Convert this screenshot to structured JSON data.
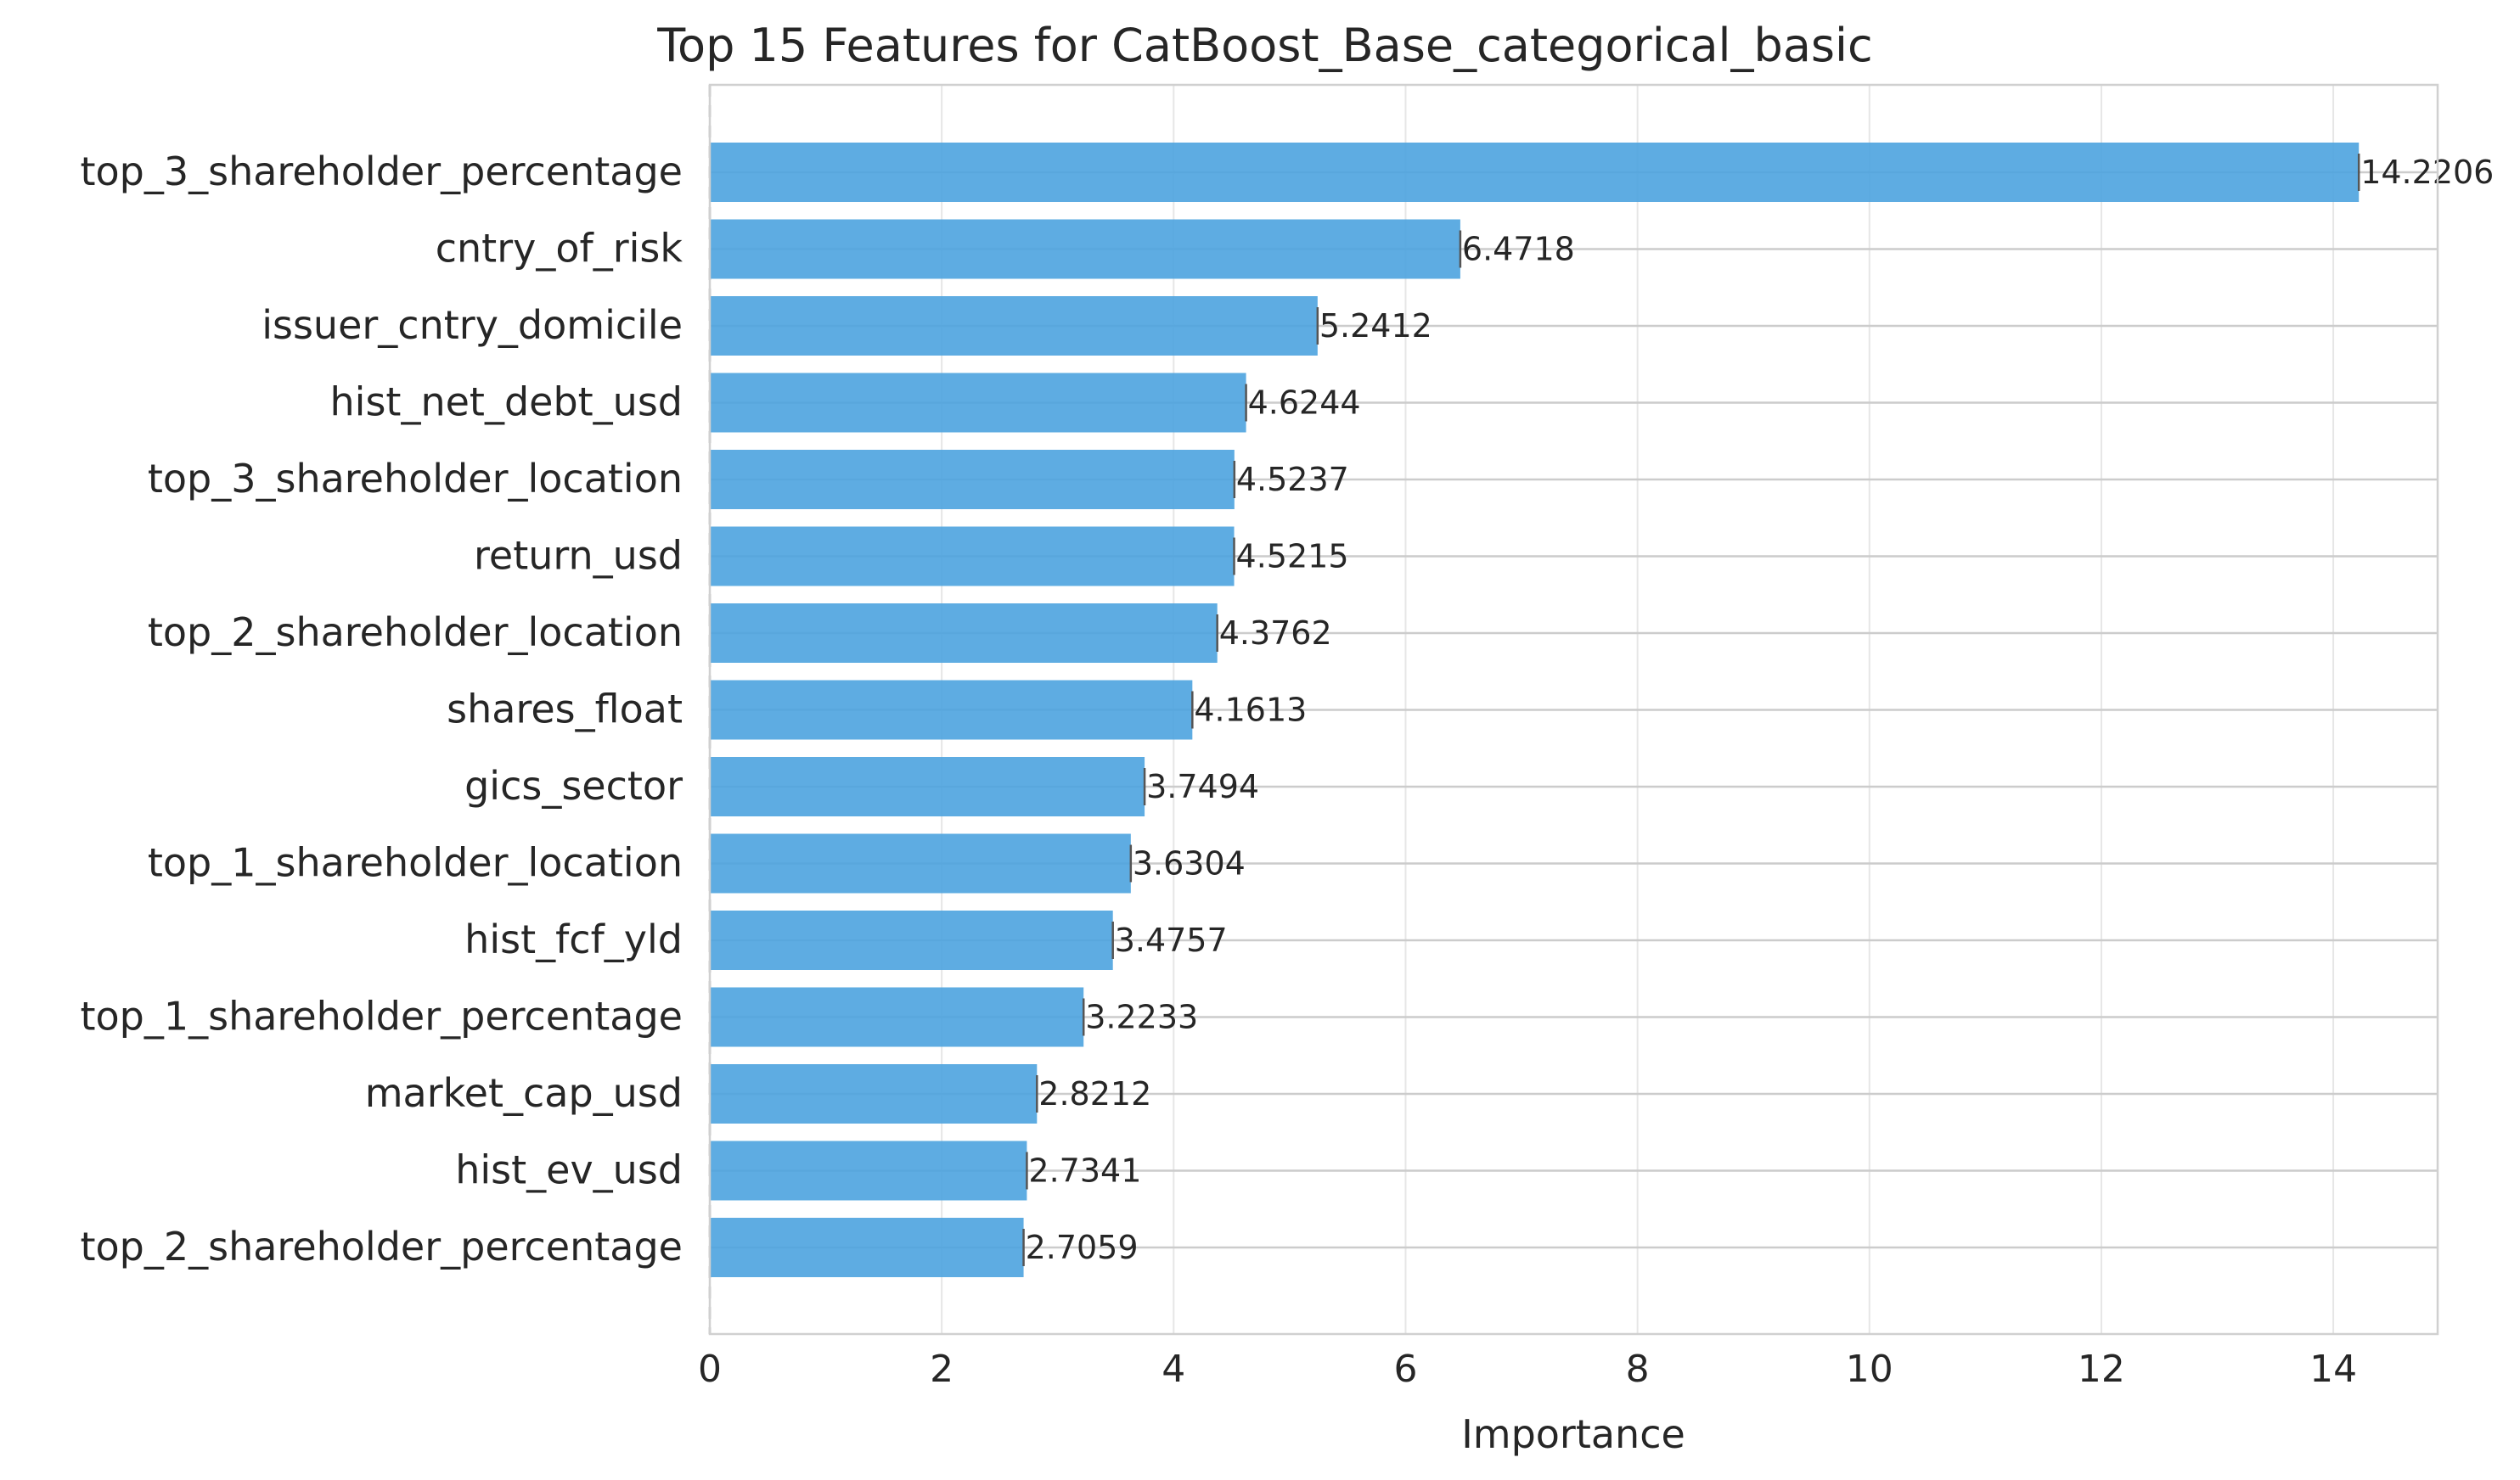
{
  "chart_data": {
    "type": "bar",
    "orientation": "horizontal",
    "title": "Top 15 Features for CatBoost_Base_categorical_basic",
    "xlabel": "Importance",
    "ylabel": "",
    "xlim": [
      0,
      14.9
    ],
    "xticks": [
      "0",
      "2",
      "4",
      "6",
      "8",
      "10",
      "12",
      "14"
    ],
    "grid": true,
    "bar_color": "#4ca3df",
    "categories": [
      "top_3_shareholder_percentage",
      "cntry_of_risk",
      "issuer_cntry_domicile",
      "hist_net_debt_usd",
      "top_3_shareholder_location",
      "return_usd",
      "top_2_shareholder_location",
      "shares_float",
      "gics_sector",
      "top_1_shareholder_location",
      "hist_fcf_yld",
      "top_1_shareholder_percentage",
      "market_cap_usd",
      "hist_ev_usd",
      "top_2_shareholder_percentage"
    ],
    "values": [
      14.2206,
      6.4718,
      5.2412,
      4.6244,
      4.5237,
      4.5215,
      4.3762,
      4.1613,
      3.7494,
      3.6304,
      3.4757,
      3.2233,
      2.8212,
      2.7341,
      2.7059
    ],
    "value_labels": [
      "14.2206",
      "6.4718",
      "5.2412",
      "4.6244",
      "4.5237",
      "4.5215",
      "4.3762",
      "4.1613",
      "3.7494",
      "3.6304",
      "3.4757",
      "3.2233",
      "2.8212",
      "2.7341",
      "2.7059"
    ]
  }
}
